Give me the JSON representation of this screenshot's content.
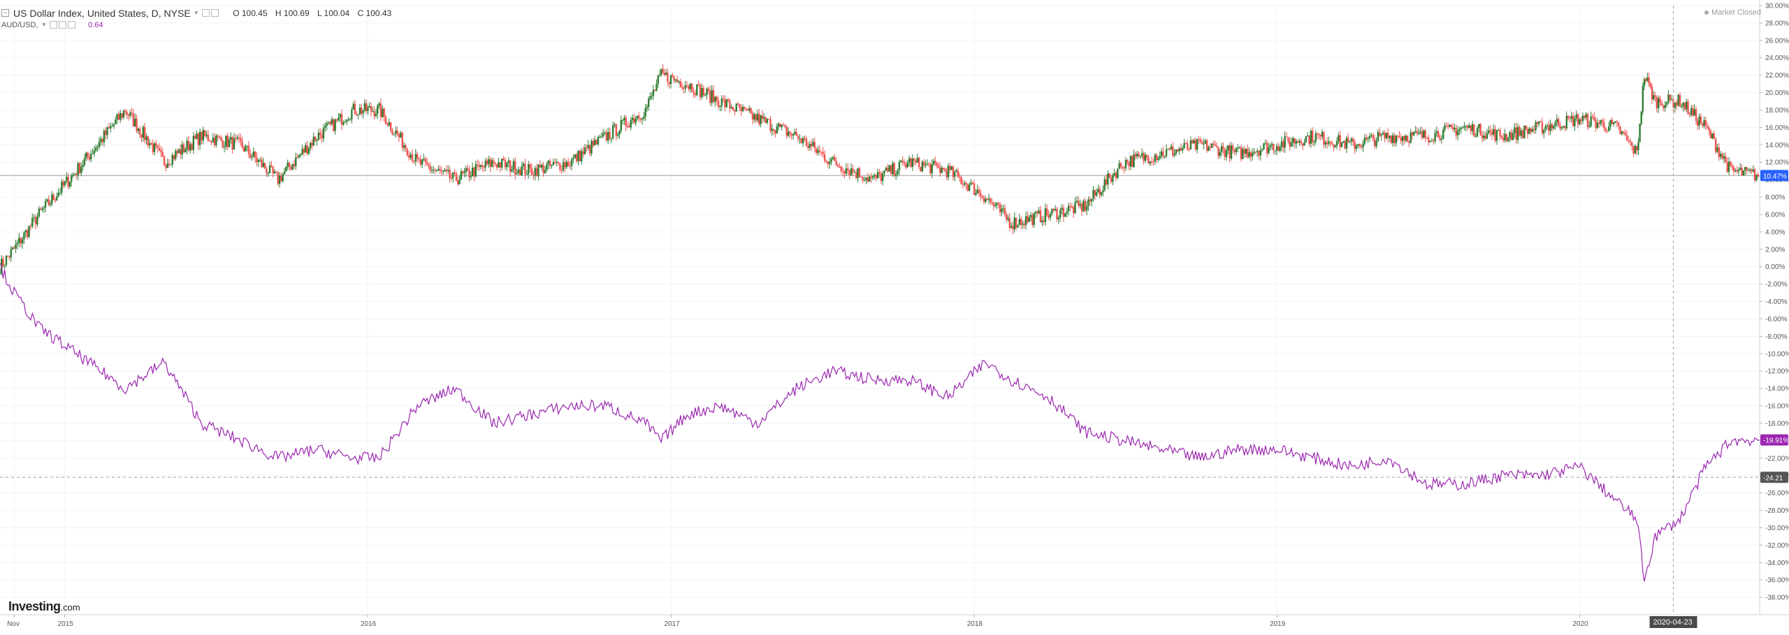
{
  "header": {
    "title": "US Dollar Index, United States, D, NYSE",
    "ohlc": {
      "o": "O 100.45",
      "h": "H 100.69",
      "l": "L 100.04",
      "c": "C 100.43"
    },
    "secondary_symbol": "AUD/USD,",
    "secondary_value": "0.64",
    "market_status": "Market Closed"
  },
  "logo": {
    "brand": "Investing",
    "tld": ".com"
  },
  "colors": {
    "up": "#26a69a",
    "down": "#ef5350",
    "candle_dark": "#2e7d32",
    "line_purple": "#9c27b0",
    "price_badge_blue": "#2962ff",
    "grid": "#f0f3fa",
    "axis_text": "#555555"
  },
  "chart_data": {
    "type": "line",
    "title": "US Dollar Index, United States, D, NYSE",
    "xlabel": "",
    "ylabel": "",
    "x_ticks": [
      "Nov",
      "2015",
      "2016",
      "2017",
      "2018",
      "2019",
      "2020"
    ],
    "x_range": [
      "2014-10-15",
      "2020-08-05"
    ],
    "crosshair_date": "2020-04-23",
    "y_unit": "%",
    "y_range": [
      -40,
      30
    ],
    "y_ticks": [
      30,
      28,
      26,
      24,
      22,
      20,
      18,
      16,
      14,
      12,
      10,
      8,
      6,
      4,
      2,
      0,
      -2,
      -4,
      -6,
      -8,
      -10,
      -12,
      -14,
      -16,
      -18,
      -20,
      -22,
      -24,
      -26,
      -28,
      -30,
      -32,
      -34,
      -36,
      -38
    ],
    "y_tick_labels": [
      "30.00%",
      "28.00%",
      "26.00%",
      "24.00%",
      "22.00%",
      "20.00%",
      "18.00%",
      "16.00%",
      "14.00%",
      "12.00%",
      "10.00%",
      "8.00%",
      "6.00%",
      "4.00%",
      "2.00%",
      "0.00%",
      "-2.00%",
      "-4.00%",
      "-6.00%",
      "-8.00%",
      "-10.00%",
      "-12.00%",
      "-14.00%",
      "-16.00%",
      "-18.00%",
      "-20.00%",
      "-22.00%",
      "-24.00%",
      "-26.00%",
      "-28.00%",
      "-30.00%",
      "-32.00%",
      "-34.00%",
      "-36.00%",
      "-38.00%"
    ],
    "current_badges": [
      {
        "label": "10.47%",
        "value": 10.47,
        "color": "#2962ff"
      },
      {
        "label": "-19.91%",
        "value": -19.91,
        "color": "#9c27b0"
      },
      {
        "label": "-24.21",
        "value": -24.21,
        "color": "#555555"
      }
    ],
    "series": [
      {
        "type": "candlestick",
        "x": [
          "2014-10-15",
          "2014-11-01",
          "2014-12-01",
          "2015-01-15",
          "2015-03-15",
          "2015-05-01",
          "2015-06-15",
          "2015-08-01",
          "2015-09-15",
          "2015-11-01",
          "2015-12-15",
          "2016-01-15",
          "2016-03-01",
          "2016-04-15",
          "2016-06-01",
          "2016-07-15",
          "2016-09-01",
          "2016-10-15",
          "2016-12-01",
          "2016-12-20",
          "2017-01-20",
          "2017-03-01",
          "2017-04-15",
          "2017-06-01",
          "2017-07-15",
          "2017-09-01",
          "2017-10-15",
          "2017-12-01",
          "2018-01-15",
          "2018-02-15",
          "2018-04-01",
          "2018-05-15",
          "2018-07-01",
          "2018-08-15",
          "2018-10-01",
          "2018-11-15",
          "2019-01-01",
          "2019-02-15",
          "2019-04-01",
          "2019-05-15",
          "2019-07-01",
          "2019-08-15",
          "2019-10-01",
          "2019-11-15",
          "2020-01-01",
          "2020-02-15",
          "2020-03-10",
          "2020-03-19",
          "2020-04-01",
          "2020-05-01",
          "2020-06-01",
          "2020-07-01",
          "2020-08-05"
        ],
        "values": [
          0,
          2,
          6,
          11,
          18,
          12,
          15,
          14,
          10,
          15,
          18,
          18,
          12,
          10,
          12,
          11,
          12,
          15,
          18,
          22,
          21,
          19,
          17,
          15,
          12,
          10,
          12,
          11,
          8,
          5,
          6,
          7,
          12,
          13,
          14,
          13,
          14,
          15,
          14,
          15,
          15,
          16,
          15,
          16,
          17,
          16,
          13,
          22,
          19,
          19,
          16,
          11,
          10.47
        ]
      },
      {
        "type": "line",
        "x": [
          "2014-10-15",
          "2014-11-01",
          "2014-12-01",
          "2015-01-15",
          "2015-03-15",
          "2015-05-01",
          "2015-06-15",
          "2015-08-01",
          "2015-09-15",
          "2015-11-01",
          "2015-12-15",
          "2016-01-15",
          "2016-03-01",
          "2016-04-15",
          "2016-06-01",
          "2016-07-15",
          "2016-09-01",
          "2016-10-15",
          "2016-12-01",
          "2016-12-20",
          "2017-01-20",
          "2017-03-01",
          "2017-04-15",
          "2017-06-01",
          "2017-07-15",
          "2017-09-01",
          "2017-10-15",
          "2017-12-01",
          "2018-01-15",
          "2018-02-15",
          "2018-04-01",
          "2018-05-15",
          "2018-07-01",
          "2018-08-15",
          "2018-10-01",
          "2018-11-15",
          "2019-01-01",
          "2019-02-15",
          "2019-04-01",
          "2019-05-15",
          "2019-07-01",
          "2019-08-15",
          "2019-10-01",
          "2019-11-15",
          "2020-01-01",
          "2020-02-15",
          "2020-03-10",
          "2020-03-19",
          "2020-04-01",
          "2020-05-01",
          "2020-06-01",
          "2020-07-01",
          "2020-08-05"
        ],
        "values": [
          0,
          -3,
          -7,
          -10,
          -14,
          -11,
          -18,
          -20,
          -22,
          -21,
          -22,
          -22,
          -16,
          -14,
          -18,
          -17,
          -16,
          -16,
          -18,
          -20,
          -17,
          -16,
          -18,
          -14,
          -12,
          -13,
          -13,
          -15,
          -11,
          -13,
          -15,
          -19,
          -20,
          -21,
          -22,
          -21,
          -21,
          -22,
          -23,
          -22,
          -25,
          -25,
          -24,
          -24,
          -23,
          -27,
          -29,
          -36,
          -31,
          -29,
          -23,
          -20,
          -19.91
        ]
      }
    ]
  }
}
